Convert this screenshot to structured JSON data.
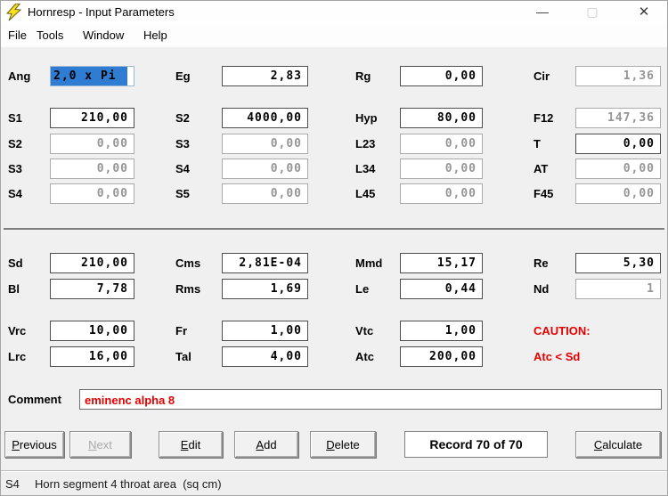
{
  "window": {
    "title": "Hornresp - Input Parameters",
    "controls": {
      "minimize": "—",
      "maximize": "▢",
      "close": "✕"
    }
  },
  "menu": {
    "items": [
      "File",
      "Tools",
      "Window",
      "Help"
    ]
  },
  "grid": {
    "rows": [
      {
        "cells": [
          {
            "label": "Ang",
            "value": "2,0 x Pi",
            "state": "selected"
          },
          {
            "label": "Eg",
            "value": "2,83",
            "state": "enabled"
          },
          {
            "label": "Rg",
            "value": "0,00",
            "state": "enabled"
          },
          {
            "label": "Cir",
            "value": "1,36",
            "state": "disabled"
          }
        ]
      },
      {
        "cells": [
          {
            "label": "S1",
            "value": "210,00",
            "state": "enabled"
          },
          {
            "label": "S2",
            "value": "4000,00",
            "state": "enabled"
          },
          {
            "label": "Hyp",
            "value": "80,00",
            "state": "enabled"
          },
          {
            "label": "F12",
            "value": "147,36",
            "state": "disabled"
          }
        ]
      },
      {
        "cells": [
          {
            "label": "S2",
            "value": "0,00",
            "state": "disabled"
          },
          {
            "label": "S3",
            "value": "0,00",
            "state": "disabled"
          },
          {
            "label": "L23",
            "value": "0,00",
            "state": "disabled"
          },
          {
            "label": "T",
            "value": "0,00",
            "state": "enabled"
          }
        ]
      },
      {
        "cells": [
          {
            "label": "S3",
            "value": "0,00",
            "state": "disabled"
          },
          {
            "label": "S4",
            "value": "0,00",
            "state": "disabled"
          },
          {
            "label": "L34",
            "value": "0,00",
            "state": "disabled"
          },
          {
            "label": "AT",
            "value": "0,00",
            "state": "disabled"
          }
        ]
      },
      {
        "cells": [
          {
            "label": "S4",
            "value": "0,00",
            "state": "disabled"
          },
          {
            "label": "S5",
            "value": "0,00",
            "state": "disabled"
          },
          {
            "label": "L45",
            "value": "0,00",
            "state": "disabled"
          },
          {
            "label": "F45",
            "value": "0,00",
            "state": "disabled"
          }
        ]
      },
      {
        "cells": [
          {
            "label": "Sd",
            "value": "210,00",
            "state": "enabled"
          },
          {
            "label": "Cms",
            "value": "2,81E-04",
            "state": "enabled"
          },
          {
            "label": "Mmd",
            "value": "15,17",
            "state": "enabled"
          },
          {
            "label": "Re",
            "value": "5,30",
            "state": "enabled"
          }
        ]
      },
      {
        "cells": [
          {
            "label": "Bl",
            "value": "7,78",
            "state": "enabled"
          },
          {
            "label": "Rms",
            "value": "1,69",
            "state": "enabled"
          },
          {
            "label": "Le",
            "value": "0,44",
            "state": "enabled"
          },
          {
            "label": "Nd",
            "value": "1",
            "state": "disabled"
          }
        ]
      },
      {
        "cells": [
          {
            "label": "Vrc",
            "value": "10,00",
            "state": "enabled"
          },
          {
            "label": "Fr",
            "value": "1,00",
            "state": "enabled"
          },
          {
            "label": "Vtc",
            "value": "1,00",
            "state": "enabled"
          }
        ]
      },
      {
        "cells": [
          {
            "label": "Lrc",
            "value": "16,00",
            "state": "enabled"
          },
          {
            "label": "Tal",
            "value": "4,00",
            "state": "enabled"
          },
          {
            "label": "Atc",
            "value": "200,00",
            "state": "enabled"
          }
        ]
      }
    ]
  },
  "caution": {
    "title": "CAUTION:",
    "detail": "Atc < Sd"
  },
  "comment": {
    "label": "Comment",
    "value": "eminenc alpha 8"
  },
  "buttons": {
    "previous": "Previous",
    "next": "Next",
    "edit": "Edit",
    "add": "Add",
    "delete": "Delete",
    "calculate": "Calculate"
  },
  "record_indicator": "Record 70 of 70",
  "status_bar": {
    "code": "S4",
    "description": "Horn segment 4 throat area  (sq cm)"
  },
  "colors": {
    "selection_blue": "#2f7cd3",
    "caution_red": "#e60000",
    "comment_text_red": "#e60000",
    "disabled_text_gray": "#959595",
    "body_bg": "#f0f0f0",
    "titlebar_bg": "#fefefe"
  }
}
